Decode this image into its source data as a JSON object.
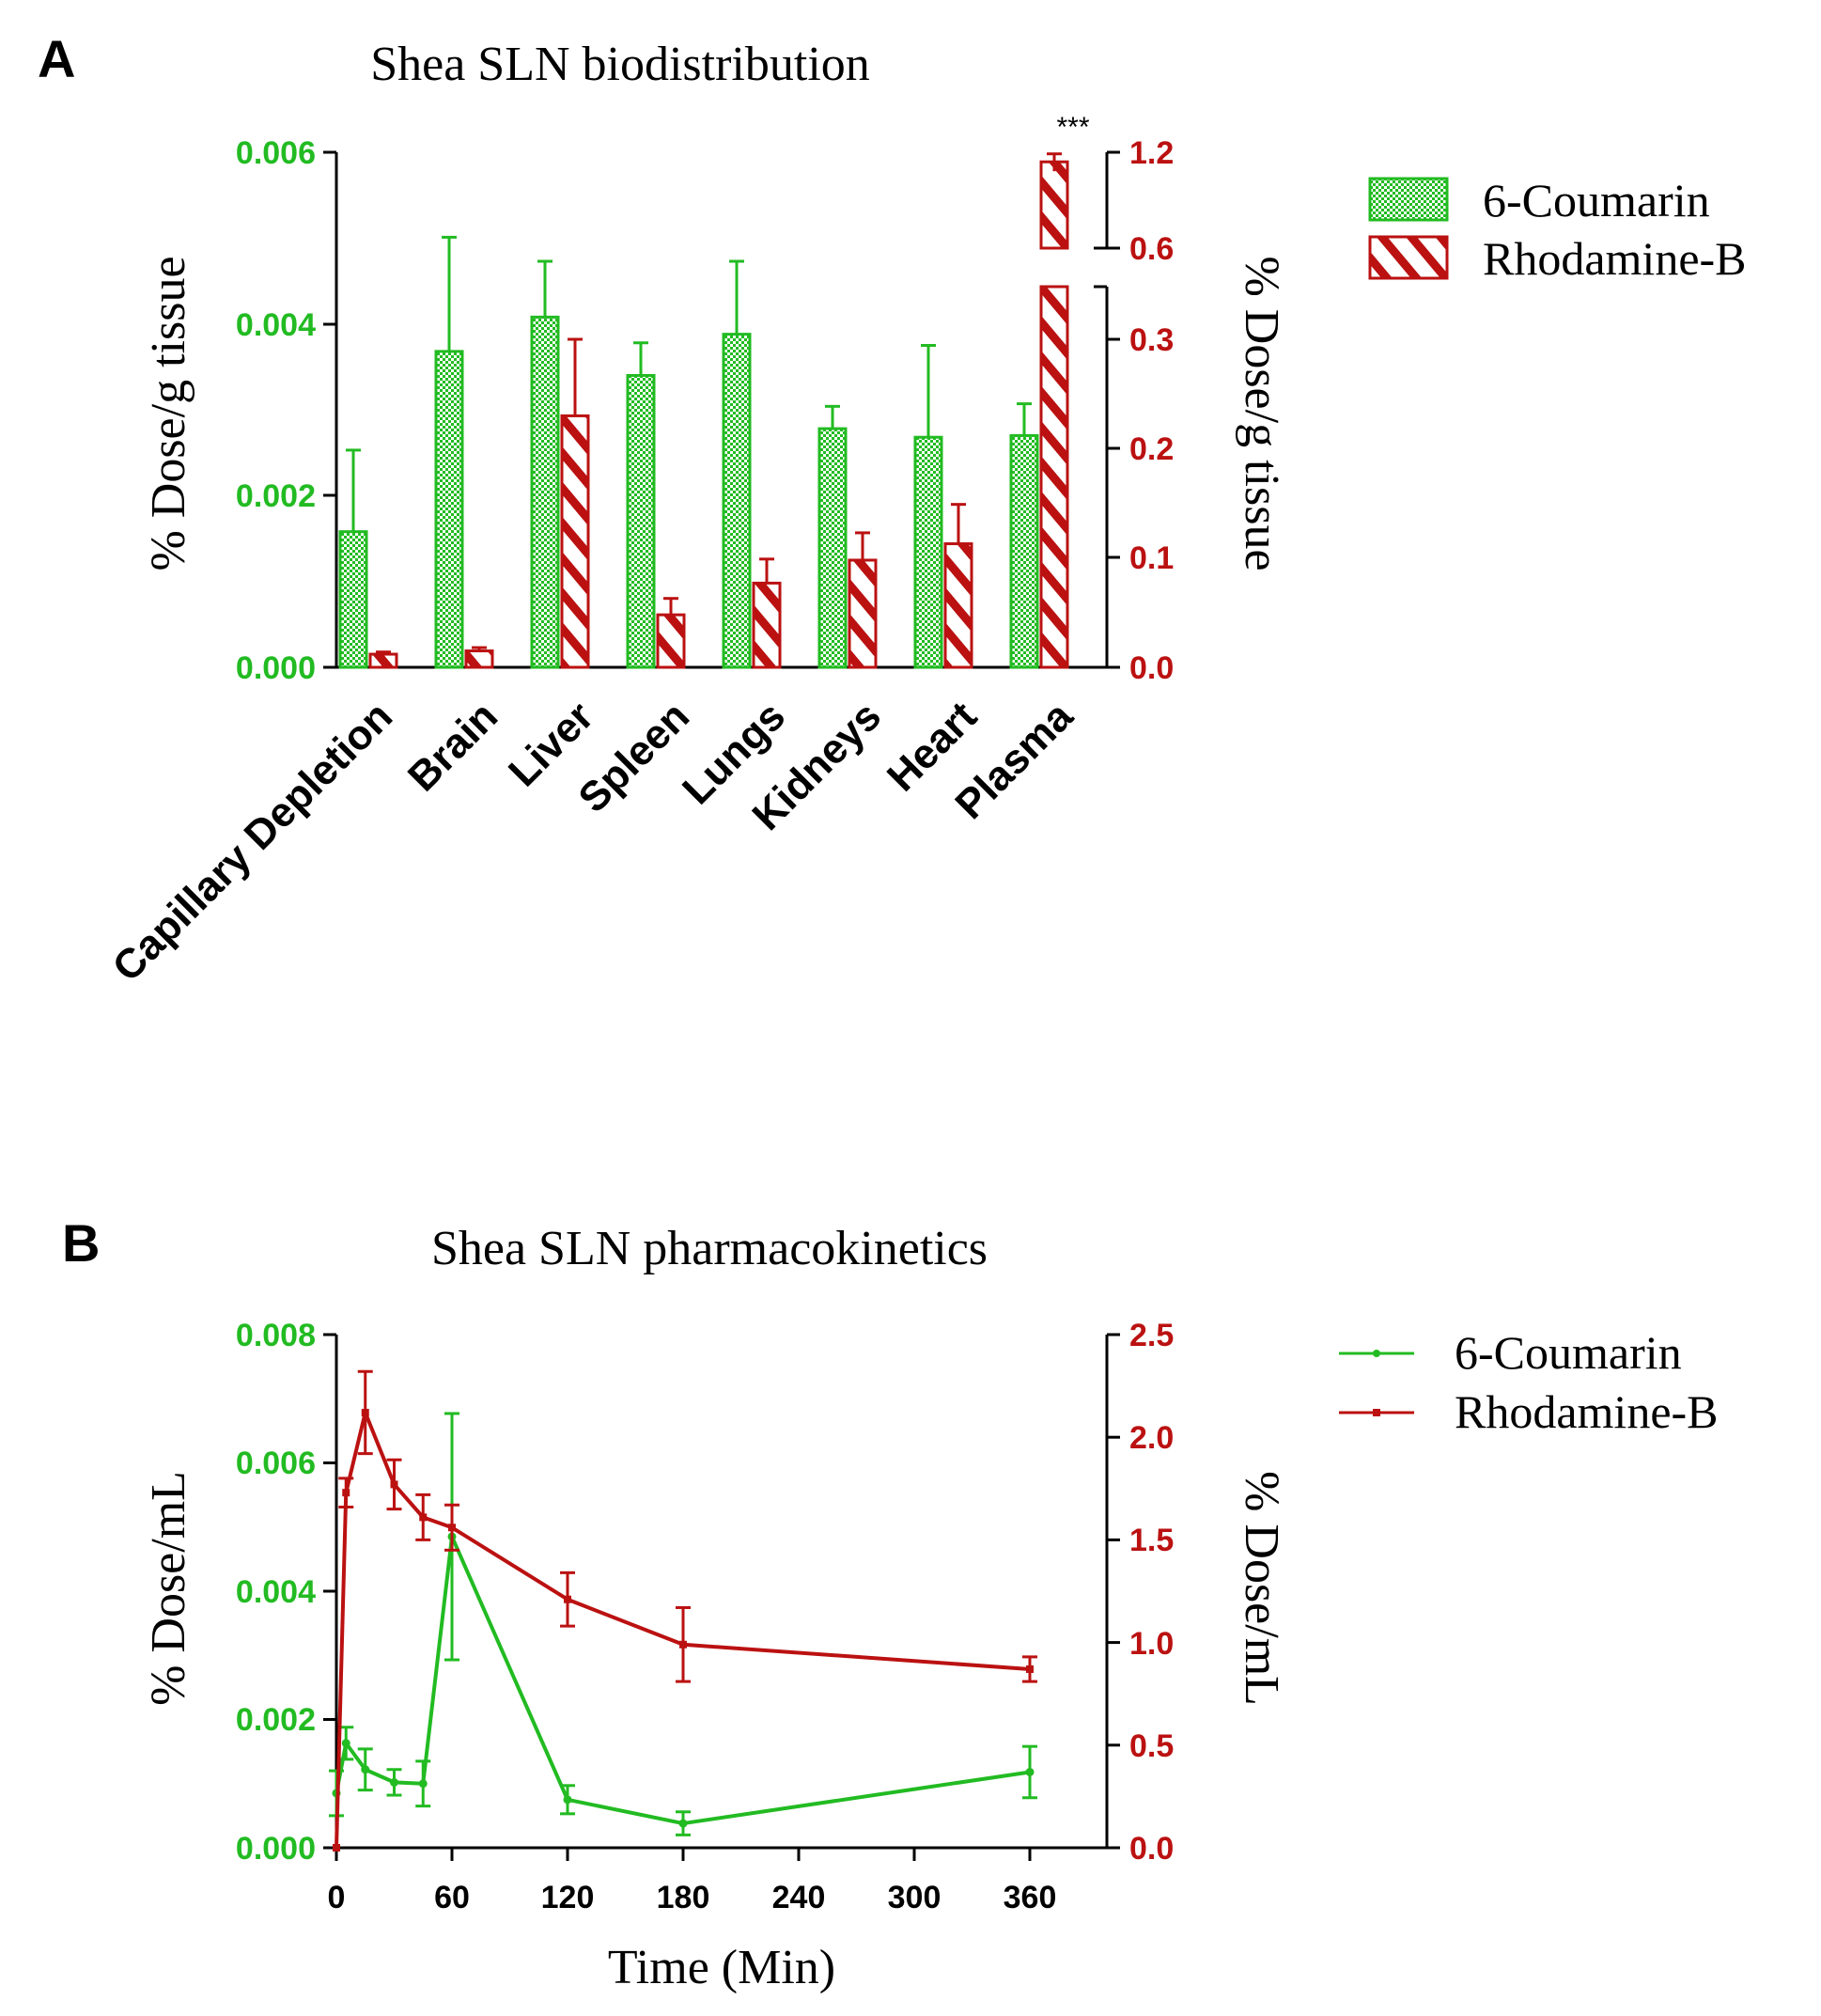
{
  "colors": {
    "green": "#22bb22",
    "red": "#bb1111",
    "axis": "#000000"
  },
  "chart_data": [
    {
      "type": "bar",
      "panel_label": "A",
      "title": "Shea SLN biodistribution",
      "categories": [
        "Capillary Depletion",
        "Brain",
        "Liver",
        "Spleen",
        "Lungs",
        "Kidneys",
        "Heart",
        "Plasma"
      ],
      "series": [
        {
          "name": "6-Coumarin",
          "axis": "left",
          "pattern": "checkered",
          "values": [
            0.00158,
            0.00368,
            0.00408,
            0.0034,
            0.00388,
            0.00278,
            0.00268,
            0.0027
          ],
          "errors": [
            0.00095,
            0.00133,
            0.00065,
            0.00038,
            0.00085,
            0.00026,
            0.00107,
            0.00037
          ]
        },
        {
          "name": "Rhodamine-B",
          "axis": "right",
          "pattern": "hatched",
          "values": [
            0.012,
            0.015,
            0.23,
            0.048,
            0.077,
            0.098,
            0.113,
            1.14
          ],
          "errors": [
            0.002,
            0.003,
            0.07,
            0.015,
            0.022,
            0.025,
            0.036,
            0.05
          ]
        }
      ],
      "ylabel_left": "% Dose/g tissue",
      "ylabel_right": "% Dose/g tissue",
      "ylim_left": [
        0,
        0.006
      ],
      "yticks_left": [
        "0.000",
        "0.002",
        "0.004",
        "0.006"
      ],
      "ylim_right_lower": [
        0,
        0.36
      ],
      "yticks_right_lower": [
        "0.0",
        "0.1",
        "0.2",
        "0.3"
      ],
      "ylim_right_upper": [
        0.6,
        1.2
      ],
      "yticks_right_upper": [
        "0.6",
        "1.2"
      ],
      "annotation": "***",
      "legend": [
        "6-Coumarin",
        "Rhodamine-B"
      ],
      "legend_position": "right"
    },
    {
      "type": "line",
      "panel_label": "B",
      "title": "Shea SLN pharmacokinetics",
      "xlabel": "Time (Min)",
      "xticks": [
        "0",
        "60",
        "120",
        "180",
        "240",
        "300",
        "360"
      ],
      "xlim": [
        0,
        400
      ],
      "x": [
        0,
        5,
        15,
        30,
        45,
        60,
        120,
        180,
        360
      ],
      "series": [
        {
          "name": "6-Coumarin",
          "axis": "left",
          "values": [
            0.00085,
            0.00163,
            0.00122,
            0.00102,
            0.001,
            0.00485,
            0.00075,
            0.00038,
            0.00118
          ],
          "errors": [
            0.00035,
            0.00025,
            0.00032,
            0.0002,
            0.00035,
            0.00192,
            0.00022,
            0.00018,
            0.0004
          ]
        },
        {
          "name": "Rhodamine-B",
          "axis": "right",
          "values": [
            0.0,
            1.73,
            2.12,
            1.77,
            1.61,
            1.56,
            1.21,
            0.99,
            0.87
          ],
          "errors": [
            0.0,
            0.07,
            0.2,
            0.12,
            0.11,
            0.11,
            0.13,
            0.18,
            0.06
          ]
        }
      ],
      "ylabel_left": "% Dose/mL",
      "ylabel_right": "% Dose/mL",
      "ylim_left": [
        0,
        0.008
      ],
      "yticks_left": [
        "0.000",
        "0.002",
        "0.004",
        "0.006",
        "0.008"
      ],
      "ylim_right": [
        0,
        2.5
      ],
      "yticks_right": [
        "0.0",
        "0.5",
        "1.0",
        "1.5",
        "2.0",
        "2.5"
      ],
      "legend": [
        "6-Coumarin",
        "Rhodamine-B"
      ],
      "legend_position": "right"
    }
  ]
}
